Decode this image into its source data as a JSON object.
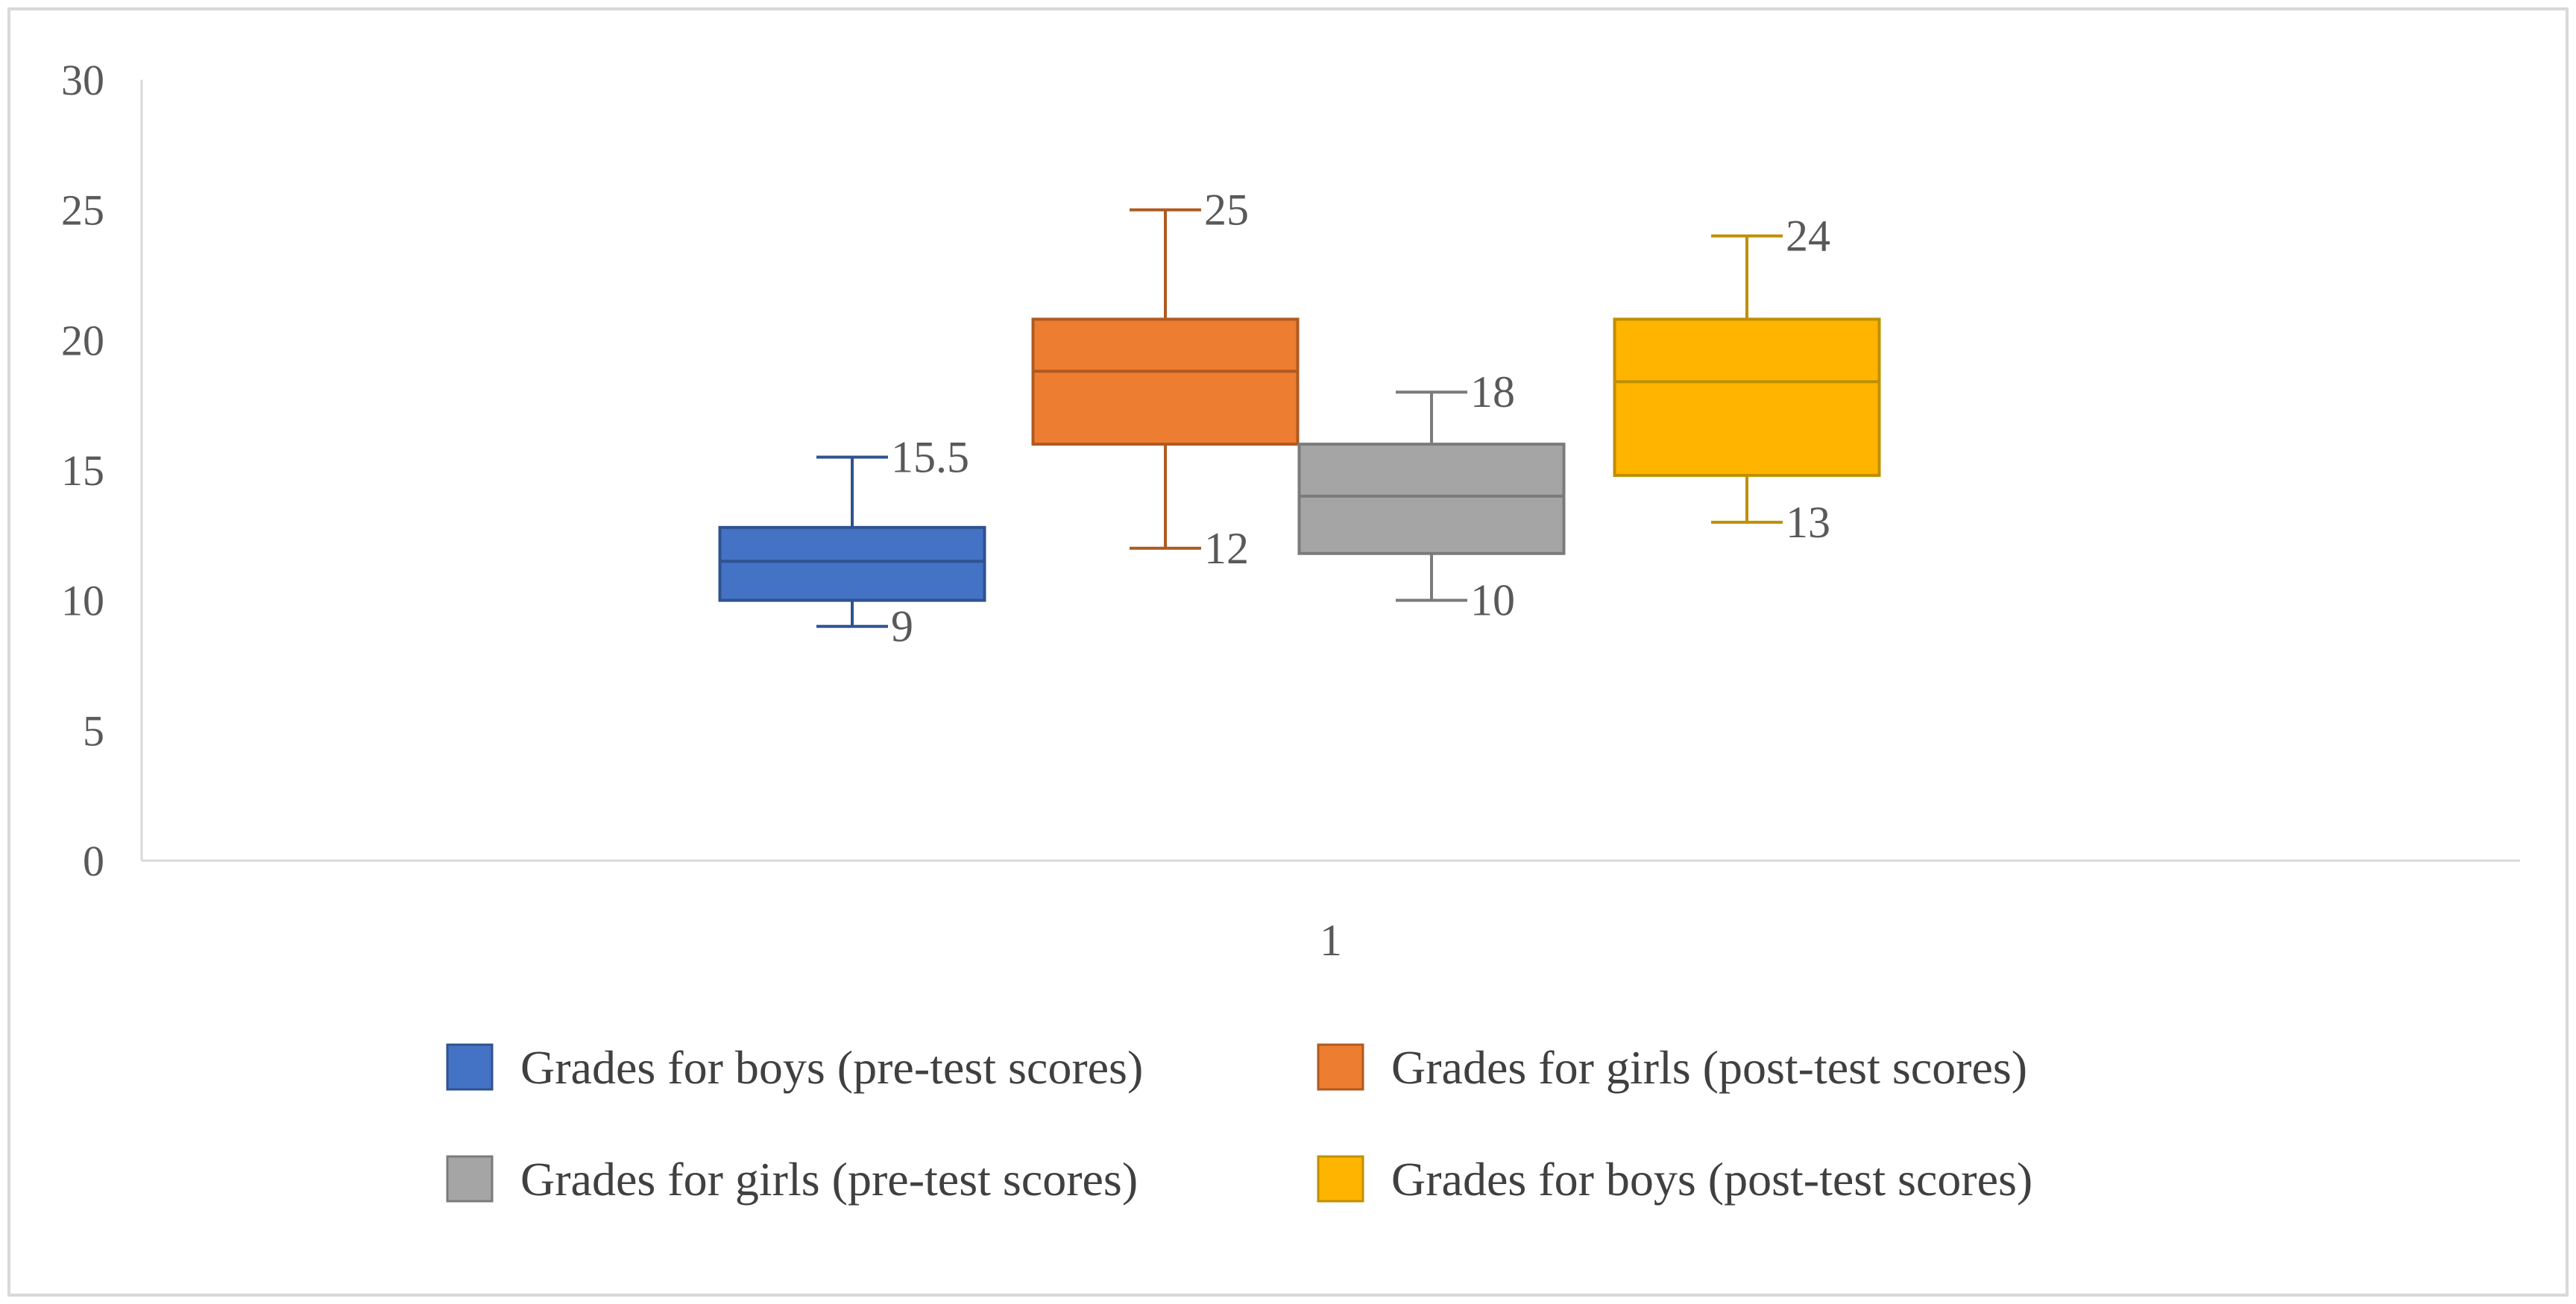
{
  "chart_data": {
    "type": "boxplot",
    "title": "",
    "xlabel": "",
    "ylabel": "",
    "categories": [
      "1"
    ],
    "ylim": [
      0,
      30
    ],
    "y_ticks": [
      0,
      5,
      10,
      15,
      20,
      25,
      30
    ],
    "y_tick_labels": [
      "0",
      "5",
      "10",
      "15",
      "20",
      "25",
      "30"
    ],
    "grid": false,
    "legend_position": "bottom",
    "series": [
      {
        "name": "Grades for boys (pre-test scores)",
        "color": "#4472C4",
        "stroke": "#2F528F",
        "min": 9,
        "q1": 10,
        "median": 11.5,
        "q3": 12.8,
        "max": 15.5,
        "max_label": "15.5",
        "min_label": "9"
      },
      {
        "name": "Grades for girls (post-test scores)",
        "color": "#ED7D31",
        "stroke": "#AE5A21",
        "min": 12,
        "q1": 16,
        "median": 18.8,
        "q3": 20.8,
        "max": 25,
        "max_label": "25",
        "min_label": "12"
      },
      {
        "name": "Grades for girls (pre-test scores)",
        "color": "#A5A5A5",
        "stroke": "#7B7B7B",
        "min": 10,
        "q1": 11.8,
        "median": 14,
        "q3": 16,
        "max": 18,
        "max_label": "18",
        "min_label": "10"
      },
      {
        "name": "Grades for boys (post-test scores)",
        "color": "#FFB400",
        "stroke": "#BF8F00",
        "min": 13,
        "q1": 14.8,
        "median": 18.4,
        "q3": 20.8,
        "max": 24,
        "max_label": "24",
        "min_label": "13"
      }
    ]
  }
}
